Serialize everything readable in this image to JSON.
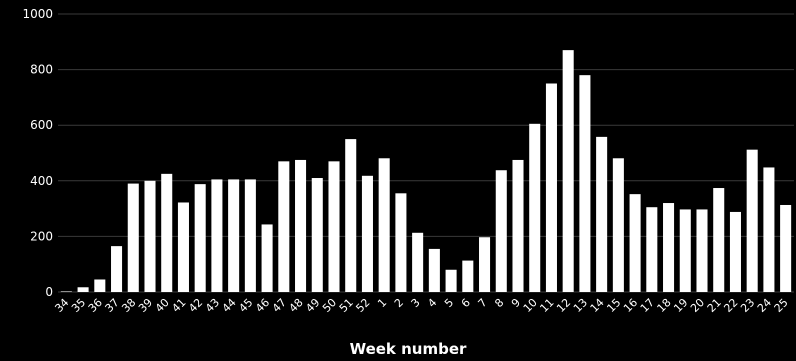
{
  "chart_data": {
    "type": "bar",
    "title": "",
    "xlabel": "Week number",
    "ylabel": "",
    "ylim": [
      0,
      1000
    ],
    "yticks": [
      0,
      200,
      400,
      600,
      800,
      1000
    ],
    "grid": true,
    "legend": "none",
    "colors": {
      "background": "#000000",
      "bar": "#ffffff",
      "text": "#ffffff",
      "grid": "#3a3a3a"
    },
    "categories": [
      "34",
      "35",
      "36",
      "37",
      "38",
      "39",
      "40",
      "41",
      "42",
      "43",
      "44",
      "45",
      "46",
      "47",
      "48",
      "49",
      "50",
      "51",
      "52",
      "1",
      "2",
      "3",
      "4",
      "5",
      "6",
      "7",
      "8",
      "9",
      "10",
      "11",
      "12",
      "13",
      "14",
      "15",
      "16",
      "17",
      "18",
      "19",
      "20",
      "21",
      "22",
      "23",
      "24",
      "25"
    ],
    "values": [
      2,
      17,
      45,
      165,
      390,
      400,
      425,
      322,
      388,
      405,
      405,
      405,
      243,
      470,
      475,
      410,
      470,
      550,
      418,
      481,
      355,
      213,
      155,
      80,
      113,
      197,
      438,
      475,
      605,
      750,
      870,
      780,
      558,
      481,
      352,
      305,
      320,
      297,
      297,
      374,
      288,
      512,
      448,
      313
    ]
  }
}
